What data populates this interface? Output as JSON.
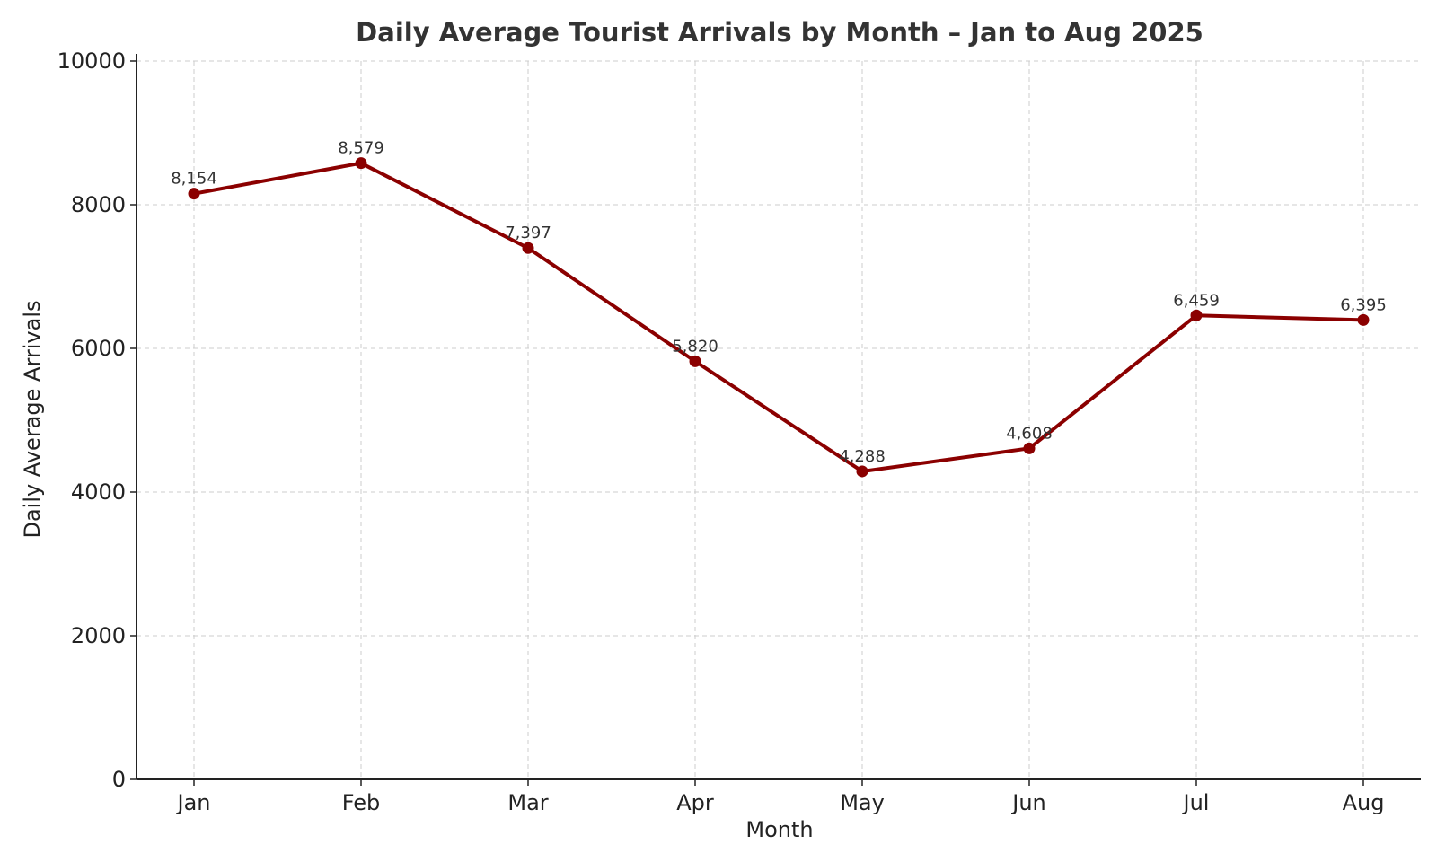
{
  "chart_data": {
    "type": "line",
    "title": "Daily Average Tourist Arrivals by Month – Jan to Aug 2025",
    "xlabel": "Month",
    "ylabel": "Daily Average Arrivals",
    "categories": [
      "Jan",
      "Feb",
      "Mar",
      "Apr",
      "May",
      "Jun",
      "Jul",
      "Aug"
    ],
    "series": [
      {
        "values": [
          8154,
          8579,
          7397,
          5820,
          4288,
          4608,
          6459,
          6395
        ],
        "labels": [
          "8,154",
          "8,579",
          "7,397",
          "5,820",
          "4,288",
          "4,608",
          "6,459",
          "6,395"
        ],
        "color": "#8b0000"
      }
    ],
    "ylim": [
      0,
      10000
    ],
    "yticks": [
      "0",
      "2000",
      "4000",
      "6000",
      "8000",
      "10000"
    ],
    "grid": true,
    "legend": "none"
  }
}
